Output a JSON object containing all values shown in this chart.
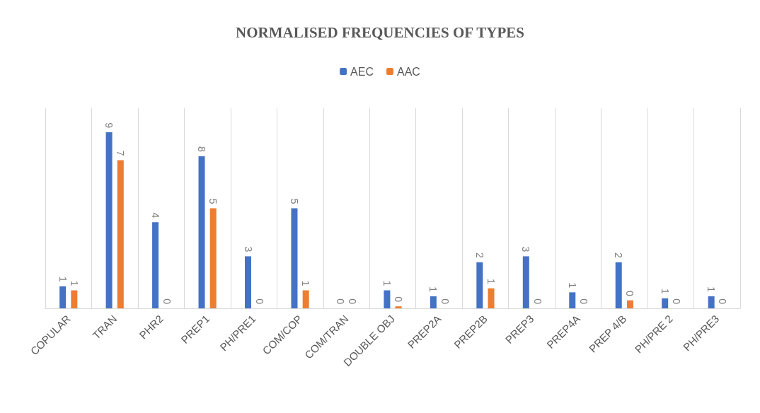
{
  "chart_data": {
    "type": "bar",
    "title": "NORMALISED FREQUENCIES OF TYPES",
    "categories": [
      "COPULAR",
      "TRAN",
      "PHR2",
      "PREP1",
      "PH/PRE1",
      "COM/COP",
      "COM/TRAN",
      "DOUBLE OBJ",
      "PREP2A",
      "PREP2B",
      "PREP3",
      "PREP4A",
      "PREP 4/B",
      "PH/PRE 2",
      "PH/PRE3"
    ],
    "series": [
      {
        "name": "AEC",
        "color": "#4472c4",
        "values": [
          1.1,
          8.8,
          4.3,
          7.6,
          2.6,
          5.0,
          0,
          0.9,
          0.6,
          2.3,
          2.6,
          0.8,
          2.3,
          0.5,
          0.6
        ],
        "value_labels": [
          "1",
          "9",
          "4",
          "8",
          "3",
          "5",
          "0",
          "1",
          "1",
          "2",
          "3",
          "1",
          "2",
          "1",
          "1"
        ]
      },
      {
        "name": "AAC",
        "color": "#ed7d31",
        "values": [
          0.9,
          7.4,
          0,
          5.0,
          0,
          0.9,
          0,
          0.1,
          0,
          1.0,
          0,
          0,
          0.4,
          0,
          0
        ],
        "value_labels": [
          "1",
          "7",
          "0",
          "5",
          "0",
          "1",
          "0",
          "0",
          "0",
          "1",
          "0",
          "0",
          "0",
          "0",
          "0"
        ]
      }
    ],
    "grid": "x",
    "legend": "top",
    "tick_labels": "x"
  }
}
